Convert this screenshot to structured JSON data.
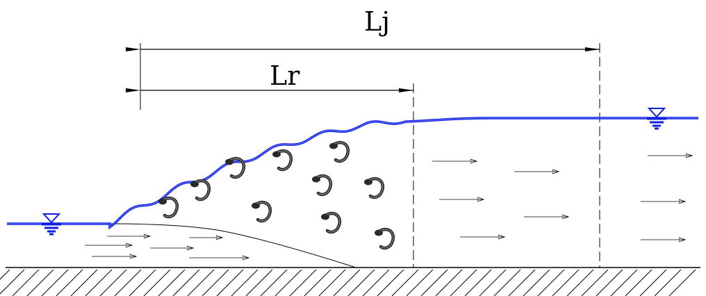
{
  "labels": {
    "jump_length": "Lj",
    "roller_length": "Lr"
  },
  "colors": {
    "water_surface": "#1020e0",
    "lines": "#000000",
    "eddies": "#2a2a2a",
    "background": "#ffffff"
  },
  "icons": {
    "upstream_level": "water-level-icon",
    "downstream_level": "water-level-icon",
    "ground": "ground-hatch-icon"
  }
}
